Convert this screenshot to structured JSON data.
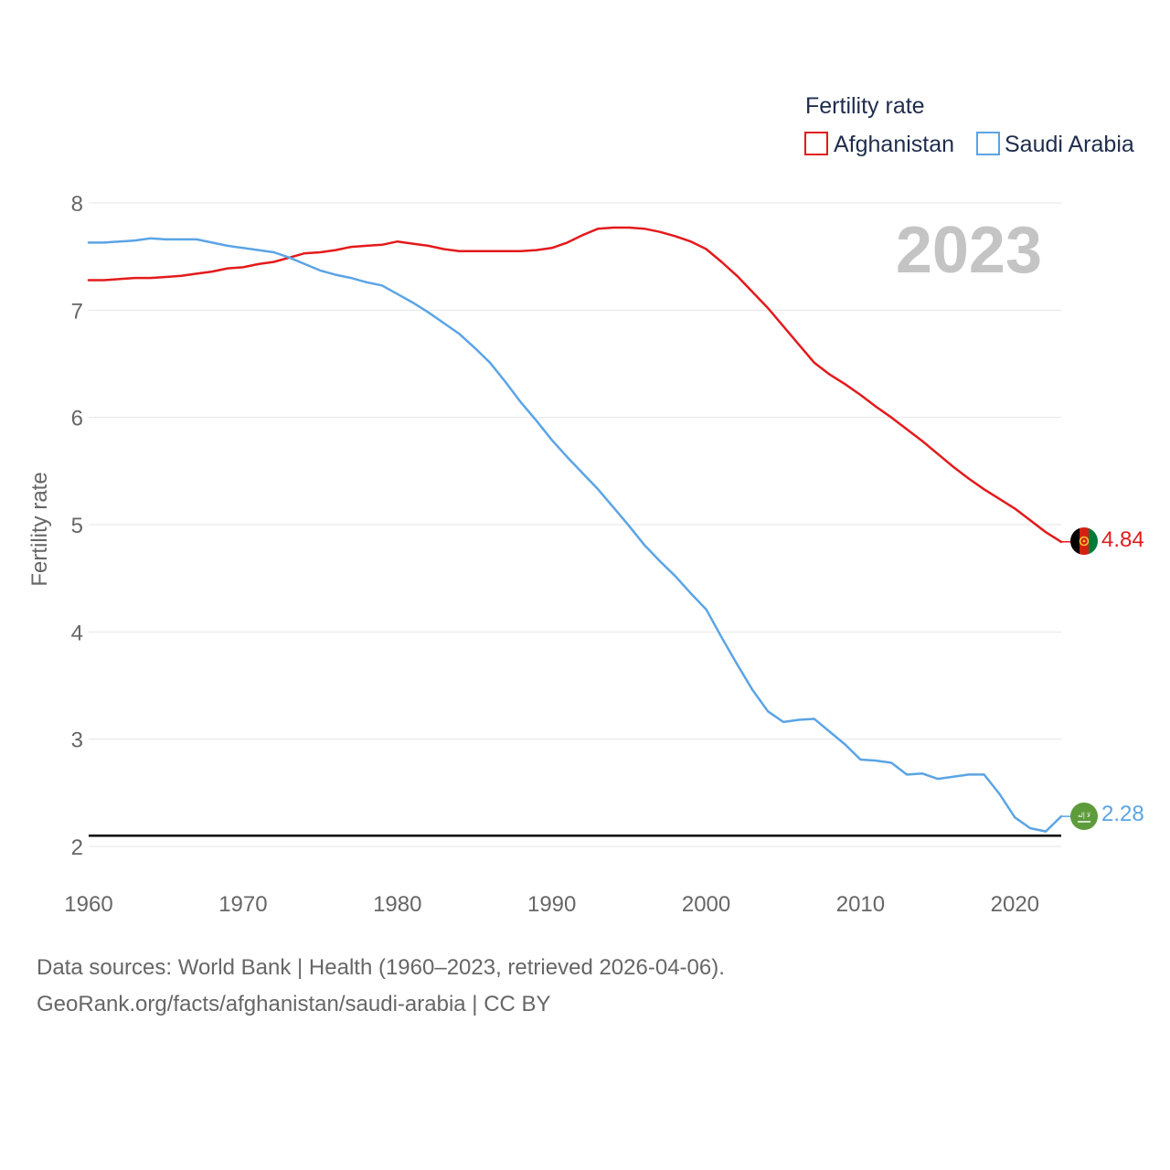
{
  "chart_data": {
    "type": "line",
    "title": "",
    "year_label": "2023",
    "xlabel": "",
    "ylabel": "Fertility rate",
    "xlim": [
      1960,
      2023
    ],
    "ylim": [
      2,
      8
    ],
    "x_ticks": [
      "1960",
      "1970",
      "1980",
      "1990",
      "2000",
      "2010",
      "2020"
    ],
    "y_ticks": [
      "2",
      "3",
      "4",
      "5",
      "6",
      "7",
      "8"
    ],
    "reference_line": 2.1,
    "legend": {
      "title": "Fertility rate",
      "entries": [
        "Afghanistan",
        "Saudi Arabia"
      ]
    },
    "x": [
      1960,
      1961,
      1962,
      1963,
      1964,
      1965,
      1966,
      1967,
      1968,
      1969,
      1970,
      1971,
      1972,
      1973,
      1974,
      1975,
      1976,
      1977,
      1978,
      1979,
      1980,
      1981,
      1982,
      1983,
      1984,
      1985,
      1986,
      1987,
      1988,
      1989,
      1990,
      1991,
      1992,
      1993,
      1994,
      1995,
      1996,
      1997,
      1998,
      1999,
      2000,
      2001,
      2002,
      2003,
      2004,
      2005,
      2006,
      2007,
      2008,
      2009,
      2010,
      2011,
      2012,
      2013,
      2014,
      2015,
      2016,
      2017,
      2018,
      2019,
      2020,
      2021,
      2022,
      2023
    ],
    "series": [
      {
        "name": "Afghanistan",
        "color": "#e31a1c",
        "end_label": "4.84",
        "values": [
          7.28,
          7.28,
          7.29,
          7.3,
          7.3,
          7.31,
          7.32,
          7.34,
          7.36,
          7.39,
          7.4,
          7.43,
          7.45,
          7.49,
          7.53,
          7.54,
          7.56,
          7.59,
          7.6,
          7.61,
          7.64,
          7.62,
          7.6,
          7.57,
          7.55,
          7.55,
          7.55,
          7.55,
          7.55,
          7.56,
          7.58,
          7.63,
          7.7,
          7.76,
          7.77,
          7.77,
          7.76,
          7.73,
          7.69,
          7.64,
          7.57,
          7.45,
          7.32,
          7.17,
          7.02,
          6.85,
          6.68,
          6.51,
          6.4,
          6.31,
          6.21,
          6.1,
          6.0,
          5.89,
          5.78,
          5.66,
          5.54,
          5.43,
          5.33,
          5.24,
          5.15,
          5.04,
          4.93,
          4.84
        ]
      },
      {
        "name": "Saudi Arabia",
        "color": "#5ba4e5",
        "end_label": "2.28",
        "values": [
          7.63,
          7.63,
          7.64,
          7.65,
          7.67,
          7.66,
          7.66,
          7.66,
          7.63,
          7.6,
          7.58,
          7.56,
          7.54,
          7.49,
          7.43,
          7.37,
          7.33,
          7.3,
          7.26,
          7.23,
          7.15,
          7.07,
          6.98,
          6.88,
          6.78,
          6.65,
          6.51,
          6.33,
          6.14,
          5.97,
          5.79,
          5.63,
          5.48,
          5.33,
          5.16,
          4.99,
          4.81,
          4.66,
          4.52,
          4.36,
          4.21,
          3.95,
          3.7,
          3.46,
          3.26,
          3.16,
          3.18,
          3.19,
          3.07,
          2.95,
          2.81,
          2.8,
          2.78,
          2.67,
          2.68,
          2.63,
          2.65,
          2.67,
          2.67,
          2.49,
          2.27,
          2.17,
          2.14,
          2.28
        ]
      }
    ]
  },
  "footer": {
    "line1": "Data sources: World Bank | Health (1960–2023, retrieved 2026-04-06).",
    "line2": "GeoRank.org/facts/afghanistan/saudi-arabia | CC BY"
  },
  "flags": {
    "saudi_text": "لا إله"
  }
}
